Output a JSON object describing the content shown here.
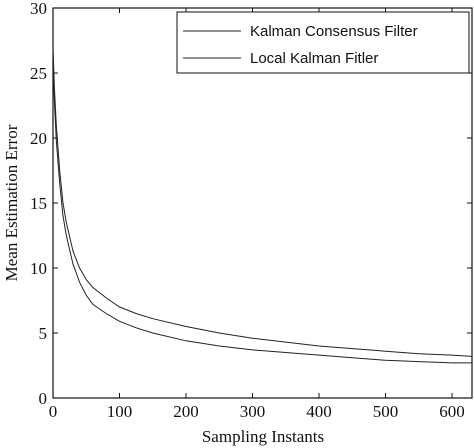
{
  "chart_data": {
    "type": "line",
    "xlabel": "Sampling Instants",
    "ylabel": "Mean Estimation Error",
    "xlim": [
      0,
      630
    ],
    "ylim": [
      0,
      30
    ],
    "xticks": [
      0,
      100,
      200,
      300,
      400,
      500,
      600
    ],
    "yticks": [
      0,
      5,
      10,
      15,
      20,
      25,
      30
    ],
    "grid": false,
    "legend_position": "top-right",
    "line_color": "#222222",
    "series": [
      {
        "name": "Kalman Consensus Filter",
        "x": [
          0,
          2,
          5,
          10,
          15,
          20,
          30,
          40,
          50,
          60,
          80,
          100,
          125,
          150,
          200,
          250,
          300,
          350,
          400,
          450,
          500,
          550,
          600,
          630
        ],
        "y": [
          27.0,
          24.0,
          21.0,
          17.5,
          15.0,
          13.5,
          11.3,
          10.0,
          9.1,
          8.5,
          7.7,
          7.0,
          6.5,
          6.1,
          5.5,
          5.0,
          4.6,
          4.3,
          4.0,
          3.8,
          3.6,
          3.4,
          3.3,
          3.2
        ]
      },
      {
        "name": "Local Kalman Fitler",
        "x": [
          0,
          2,
          5,
          10,
          15,
          20,
          30,
          40,
          50,
          60,
          80,
          100,
          125,
          150,
          200,
          250,
          300,
          350,
          400,
          450,
          500,
          550,
          600,
          630
        ],
        "y": [
          26.5,
          23.0,
          19.8,
          16.5,
          14.0,
          12.5,
          10.3,
          8.9,
          7.9,
          7.2,
          6.5,
          5.9,
          5.4,
          5.0,
          4.4,
          4.0,
          3.7,
          3.5,
          3.3,
          3.1,
          2.9,
          2.8,
          2.7,
          2.7
        ]
      }
    ]
  }
}
